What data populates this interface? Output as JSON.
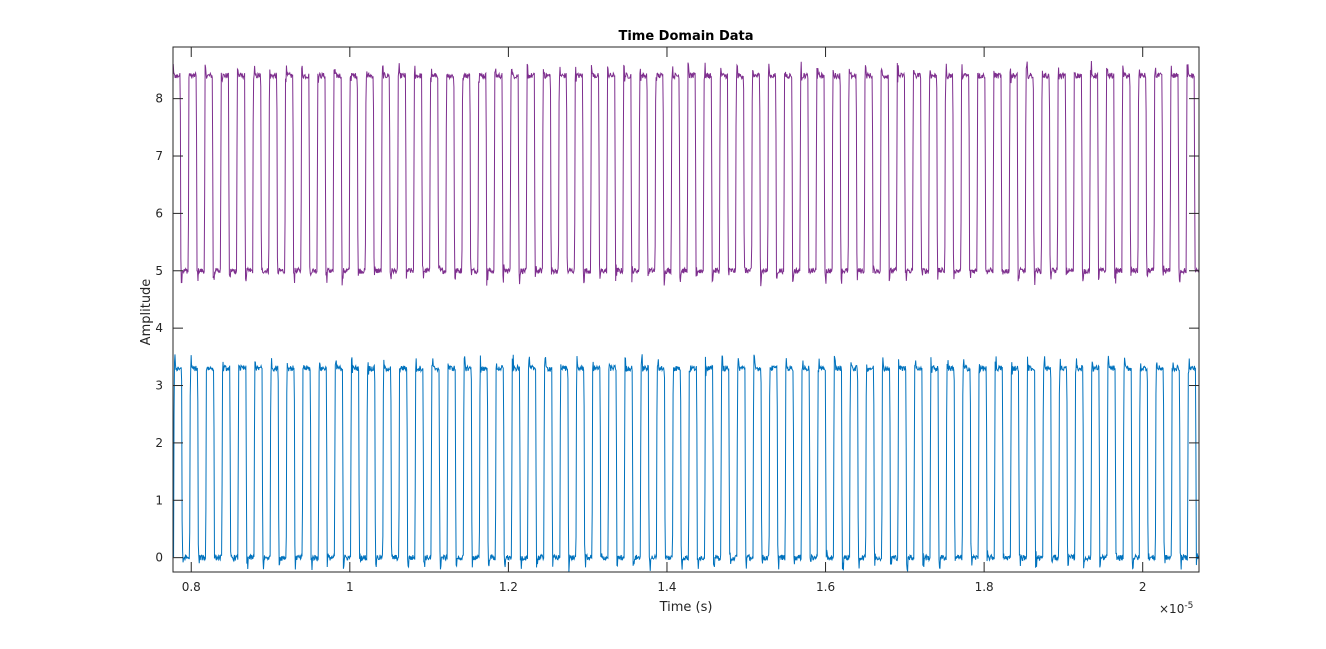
{
  "chart_data": {
    "type": "line",
    "title": "Time Domain Data",
    "xlabel": "Time (s)",
    "ylabel": "Amplitude",
    "x_exponent_label": "×10",
    "x_exponent": "-5",
    "x_scale_factor": 1e-05,
    "xlim": [
      0.777,
      2.071
    ],
    "ylim": [
      -0.25,
      8.9
    ],
    "x_ticks": [
      0.8,
      1.0,
      1.2,
      1.4,
      1.6,
      1.8,
      2.0
    ],
    "x_tick_labels": [
      "0.8",
      "1",
      "1.2",
      "1.4",
      "1.6",
      "1.8",
      "2"
    ],
    "y_ticks": [
      0,
      1,
      2,
      3,
      4,
      5,
      6,
      7,
      8
    ],
    "y_tick_labels": [
      "0",
      "1",
      "2",
      "3",
      "4",
      "5",
      "6",
      "7",
      "8"
    ],
    "grid": false,
    "legend": "none",
    "series": [
      {
        "color": "#7E2F8E",
        "low": 5.0,
        "high": 8.4,
        "cycles": 64,
        "duty": 0.5,
        "first_rising_edge": 0.776,
        "period": 0.0203,
        "noise_amplitude": 0.2
      },
      {
        "color": "#0072BD",
        "low": 0.0,
        "high": 3.3,
        "cycles": 64,
        "duty": 0.5,
        "first_rising_edge": 0.798,
        "period": 0.0203,
        "noise_amplitude": 0.2
      }
    ]
  }
}
